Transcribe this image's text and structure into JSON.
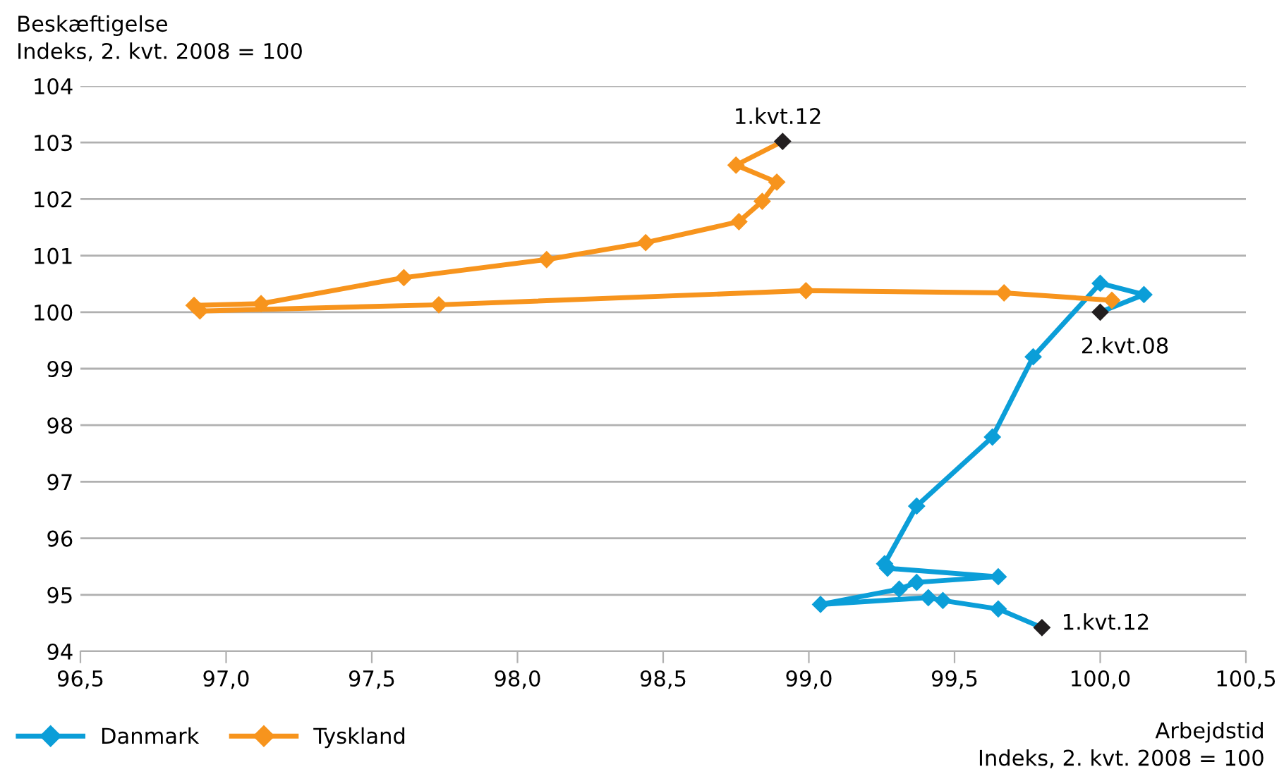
{
  "chart_data": {
    "type": "line",
    "ylabel": "Beskæftigelse\nIndeks, 2. kvt. 2008 = 100",
    "xlabel": "Arbejdstid\nIndeks, 2. kvt. 2008 = 100",
    "xlim": [
      96.5,
      100.5
    ],
    "xticks": [
      {
        "value": 96.5,
        "label": "96,5"
      },
      {
        "value": 97,
        "label": "97,0"
      },
      {
        "value": 97.5,
        "label": "97,5"
      },
      {
        "value": 98,
        "label": "98,0"
      },
      {
        "value": 98.5,
        "label": "98,5"
      },
      {
        "value": 99,
        "label": "99,0"
      },
      {
        "value": 99.5,
        "label": "99,5"
      },
      {
        "value": 100,
        "label": "100,0"
      },
      {
        "value": 100.5,
        "label": "100,5"
      }
    ],
    "ylim": [
      94,
      104
    ],
    "yticks": [
      94,
      95,
      96,
      97,
      98,
      99,
      100,
      101,
      102,
      103,
      104
    ],
    "grid": "y",
    "legend": "bottom left",
    "marker": "diamond",
    "line_style": "solid",
    "series": [
      {
        "name": "Danmark",
        "color": "#0b9ed8",
        "x": [
          100.0,
          100.15,
          100.0,
          99.77,
          99.63,
          99.37,
          99.26,
          99.27,
          99.65,
          99.37,
          99.31,
          99.04,
          99.41,
          99.46,
          99.65,
          99.8
        ],
        "values": [
          100.0,
          100.31,
          100.51,
          99.21,
          97.79,
          96.57,
          95.55,
          95.47,
          95.32,
          95.22,
          95.1,
          94.83,
          94.95,
          94.9,
          94.75,
          94.42
        ],
        "colors": [
          "#231f20",
          "#0b9ed8",
          "#0b9ed8",
          "#0b9ed8",
          "#0b9ed8",
          "#0b9ed8",
          "#0b9ed8",
          "#0b9ed8",
          "#0b9ed8",
          "#0b9ed8",
          "#0b9ed8",
          "#0b9ed8",
          "#0b9ed8",
          "#0b9ed8",
          "#0b9ed8",
          "#231f20"
        ]
      },
      {
        "name": "Tyskland",
        "color": "#f7941d",
        "x": [
          100.04,
          99.67,
          98.99,
          97.73,
          96.91,
          96.89,
          97.12,
          97.61,
          98.1,
          98.44,
          98.76,
          98.84,
          98.89,
          98.75,
          98.91
        ],
        "values": [
          100.21,
          100.34,
          100.38,
          100.13,
          100.02,
          100.12,
          100.15,
          100.61,
          100.93,
          101.23,
          101.6,
          101.96,
          102.3,
          102.6,
          103.02
        ],
        "colors": [
          "#f7941d",
          "#f7941d",
          "#f7941d",
          "#f7941d",
          "#f7941d",
          "#f7941d",
          "#f7941d",
          "#f7941d",
          "#f7941d",
          "#f7941d",
          "#f7941d",
          "#f7941d",
          "#f7941d",
          "#f7941d",
          "#231f20"
        ]
      }
    ],
    "annotations": [
      {
        "text": "2.kvt.08",
        "x": 100.0,
        "y": 100.0
      },
      {
        "text": "1.kvt.12",
        "x": 99.8,
        "y": 94.42
      },
      {
        "text": "1.kvt.12",
        "x": 98.91,
        "y": 103.02
      }
    ]
  }
}
